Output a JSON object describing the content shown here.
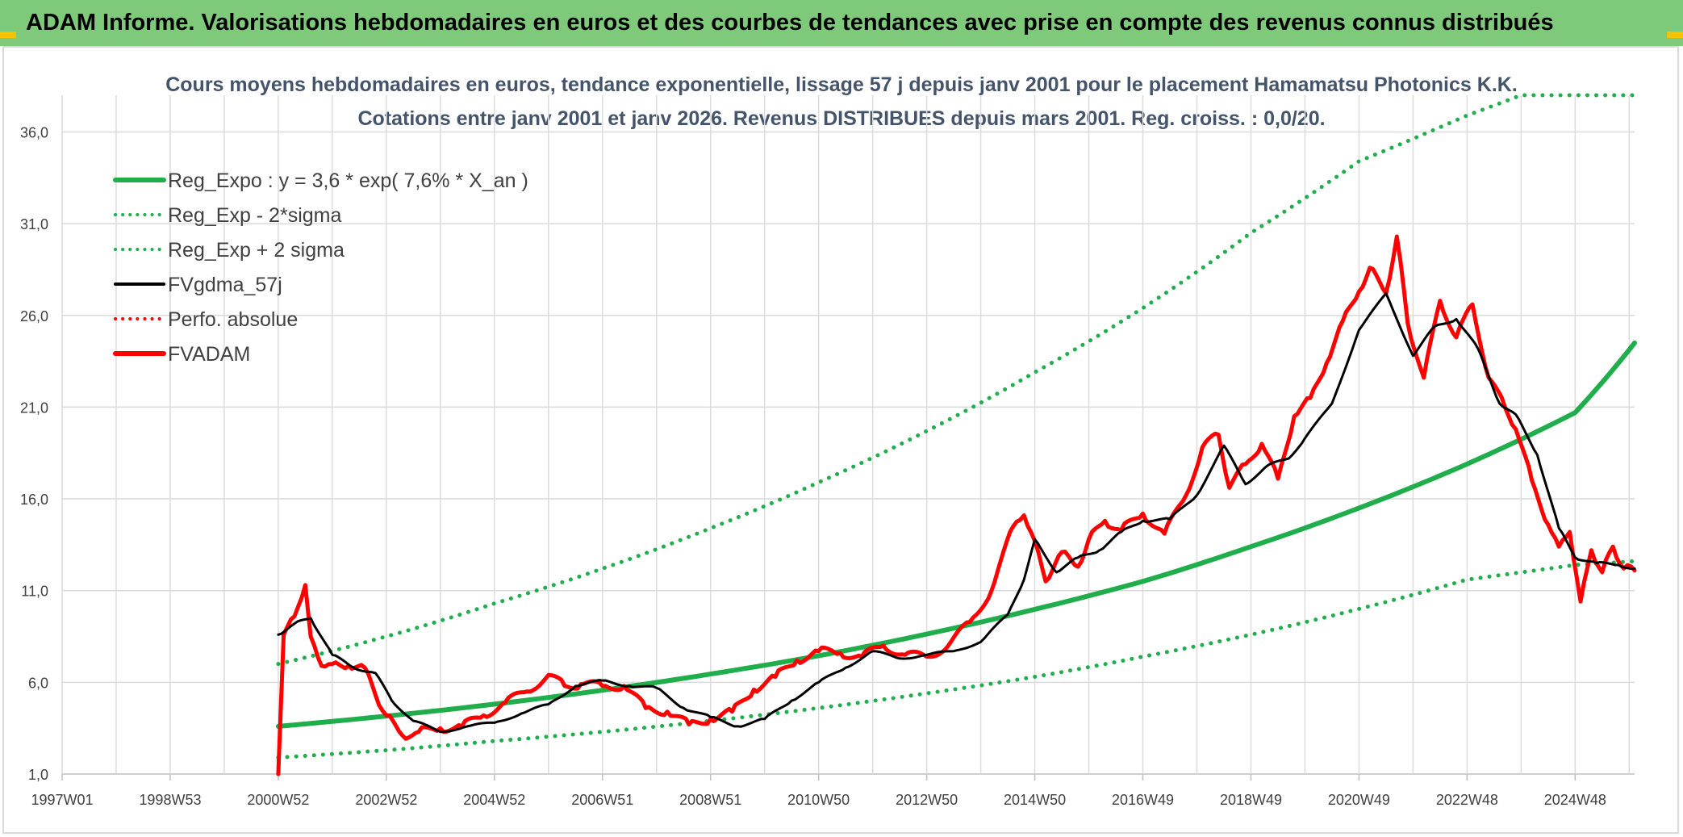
{
  "header": {
    "title": "ADAM Informe. Valorisations hebdomadaires en euros et des courbes de tendances avec prise en compte des revenus connus distribués"
  },
  "colors": {
    "header_bg": "#7fc97a",
    "reg_green": "#1fae4b",
    "price_red": "#ff0000",
    "smooth_black": "#000000",
    "title_text": "#44546a"
  },
  "chart_data": {
    "type": "line",
    "title": "Cours moyens hebdomadaires en euros, tendance exponentielle, lissage 57 j depuis janv 2001 pour le placement Hamamatsu Photonics K.K.",
    "subtitle": "Cotations entre janv 2001 et janv 2026. Revenus DISTRIBUES depuis mars 2001. Reg. croiss. : 0,0/20.",
    "x_axis": {
      "range": [
        1997.0,
        2026.1
      ],
      "tick_labels": [
        "1997W01",
        "1998W53",
        "2000W52",
        "2002W52",
        "2004W52",
        "2006W51",
        "2008W51",
        "2010W50",
        "2012W50",
        "2014W50",
        "2016W49",
        "2018W49",
        "2020W49",
        "2022W48",
        "2024W48"
      ],
      "tick_years": [
        1997.0,
        1999.0,
        2001.0,
        2003.0,
        2005.0,
        2007.0,
        2009.0,
        2011.0,
        2013.0,
        2015.0,
        2017.0,
        2019.0,
        2021.0,
        2023.0,
        2025.0
      ]
    },
    "y_axis": {
      "range": [
        1.0,
        38.0
      ],
      "tick_labels": [
        "1,0",
        "6,0",
        "11,0",
        "16,0",
        "21,0",
        "26,0",
        "31,0",
        "36,0"
      ],
      "ticks": [
        1,
        6,
        11,
        16,
        21,
        26,
        31,
        36
      ]
    },
    "grid": true,
    "legend": {
      "placement": "top-left",
      "entries": [
        {
          "label": "Reg_Expo : y = 3,6 * exp( 7,6% *  X_an )",
          "style": "solid",
          "color": "#1fae4b"
        },
        {
          "label": "Reg_Exp - 2*sigma",
          "style": "dotted",
          "color": "#1fae4b"
        },
        {
          "label": "Reg_Exp + 2 sigma",
          "style": "dotted",
          "color": "#1fae4b"
        },
        {
          "label": "FVgdma_57j",
          "style": "solid",
          "color": "#000000"
        },
        {
          "label": "Perfo. absolue",
          "style": "dotted",
          "color": "#ff0000"
        },
        {
          "label": "FVADAM",
          "style": "solid",
          "color": "#ff0000"
        }
      ]
    },
    "series": [
      {
        "name": "Reg_Expo : y = 3,6 * exp( 7,6% *  X_an )",
        "x": [
          2001.0,
          2003.0,
          2005.0,
          2007.0,
          2009.0,
          2011.0,
          2013.0,
          2015.0,
          2017.0,
          2019.0,
          2021.0,
          2023.0,
          2025.0,
          2026.1
        ],
        "y": [
          3.6,
          4.16,
          4.81,
          5.57,
          6.45,
          7.45,
          8.63,
          9.98,
          11.5,
          13.4,
          15.5,
          17.9,
          20.7,
          24.5
        ]
      },
      {
        "name": "Reg_Exp - 2*sigma",
        "x": [
          2001.0,
          2003.0,
          2005.0,
          2007.0,
          2009.0,
          2011.0,
          2013.0,
          2015.0,
          2017.0,
          2019.0,
          2021.0,
          2023.0,
          2025.0,
          2026.1
        ],
        "y": [
          1.9,
          2.3,
          2.8,
          3.3,
          3.9,
          4.6,
          5.4,
          6.3,
          7.4,
          8.6,
          10.0,
          11.6,
          12.4,
          12.6
        ]
      },
      {
        "name": "Reg_Exp + 2 sigma",
        "x": [
          2001.0,
          2003.0,
          2005.0,
          2007.0,
          2009.0,
          2011.0,
          2013.0,
          2015.0,
          2017.0,
          2019.0,
          2021.0,
          2023.0,
          2024.0,
          2026.1
        ],
        "y": [
          7.0,
          8.5,
          10.3,
          12.2,
          14.4,
          16.9,
          19.7,
          22.9,
          26.4,
          30.5,
          34.4,
          36.9,
          38.0,
          38.0
        ]
      },
      {
        "name": "FVgdma_57j",
        "x": [
          2001.0,
          2001.3,
          2001.6,
          2002.0,
          2002.4,
          2002.8,
          2003.1,
          2003.5,
          2004.0,
          2004.5,
          2005.0,
          2005.5,
          2006.0,
          2006.5,
          2007.0,
          2007.5,
          2008.0,
          2008.5,
          2009.0,
          2009.5,
          2010.0,
          2010.5,
          2011.0,
          2011.5,
          2012.0,
          2012.5,
          2013.0,
          2013.5,
          2014.0,
          2014.5,
          2014.8,
          2015.0,
          2015.4,
          2015.8,
          2016.2,
          2016.6,
          2017.0,
          2017.5,
          2018.0,
          2018.5,
          2018.9,
          2019.3,
          2019.7,
          2020.0,
          2020.5,
          2021.0,
          2021.5,
          2022.0,
          2022.4,
          2022.8,
          2023.2,
          2023.6,
          2023.9,
          2024.3,
          2024.7,
          2025.0,
          2025.4,
          2025.8,
          2026.1
        ],
        "y": [
          8.6,
          9.2,
          9.5,
          7.5,
          6.8,
          6.5,
          5.0,
          3.9,
          3.3,
          3.6,
          3.8,
          4.3,
          4.8,
          5.8,
          6.1,
          5.8,
          5.7,
          4.6,
          4.1,
          3.6,
          4.0,
          5.0,
          6.0,
          6.8,
          7.7,
          7.3,
          7.5,
          7.7,
          8.2,
          9.7,
          11.6,
          13.8,
          12.0,
          12.8,
          13.2,
          14.2,
          14.8,
          14.9,
          16.2,
          18.9,
          16.8,
          17.8,
          18.2,
          19.3,
          21.2,
          25.2,
          27.2,
          23.8,
          25.4,
          25.8,
          24.2,
          21.2,
          20.6,
          18.4,
          14.4,
          12.8,
          12.5,
          12.4,
          12.2
        ]
      },
      {
        "name": "FVADAM",
        "x": [
          2001.0,
          2001.1,
          2001.3,
          2001.5,
          2001.6,
          2001.8,
          2002.0,
          2002.3,
          2002.6,
          2002.8,
          2003.0,
          2003.3,
          2003.6,
          2004.0,
          2004.4,
          2004.8,
          2005.2,
          2005.6,
          2006.0,
          2006.3,
          2006.6,
          2007.0,
          2007.4,
          2007.8,
          2008.2,
          2008.6,
          2009.0,
          2009.4,
          2009.8,
          2010.2,
          2010.6,
          2011.0,
          2011.4,
          2011.8,
          2012.2,
          2012.6,
          2013.0,
          2013.4,
          2013.8,
          2014.2,
          2014.6,
          2014.8,
          2015.0,
          2015.2,
          2015.5,
          2015.8,
          2016.0,
          2016.3,
          2016.6,
          2017.0,
          2017.4,
          2017.8,
          2018.1,
          2018.4,
          2018.6,
          2018.9,
          2019.2,
          2019.5,
          2019.8,
          2020.1,
          2020.4,
          2020.7,
          2021.0,
          2021.2,
          2021.5,
          2021.7,
          2021.9,
          2022.2,
          2022.5,
          2022.8,
          2023.1,
          2023.4,
          2023.7,
          2023.9,
          2024.2,
          2024.5,
          2024.7,
          2024.9,
          2025.1,
          2025.3,
          2025.5,
          2025.7,
          2025.9,
          2026.1
        ],
        "y": [
          1.0,
          8.6,
          9.6,
          11.3,
          8.5,
          6.9,
          7.0,
          6.9,
          6.8,
          5.3,
          4.2,
          3.1,
          3.3,
          3.5,
          3.6,
          4.2,
          4.9,
          5.5,
          6.4,
          5.8,
          5.9,
          5.8,
          5.8,
          4.6,
          4.4,
          3.7,
          4.0,
          4.4,
          5.6,
          6.3,
          7.2,
          7.7,
          7.6,
          7.4,
          8.0,
          7.5,
          7.4,
          8.0,
          9.3,
          11.0,
          14.5,
          15.1,
          13.7,
          11.5,
          13.1,
          12.3,
          13.8,
          14.8,
          14.3,
          15.2,
          14.1,
          16.2,
          18.8,
          19.5,
          16.6,
          17.9,
          19.0,
          17.1,
          20.5,
          21.5,
          23.4,
          25.7,
          27.3,
          28.6,
          27.2,
          30.3,
          25.6,
          22.6,
          26.8,
          24.8,
          26.6,
          22.6,
          21.0,
          19.8,
          17.0,
          14.6,
          13.4,
          14.2,
          10.4,
          13.2,
          12.0,
          13.4,
          12.2,
          12.1
        ]
      }
    ]
  }
}
